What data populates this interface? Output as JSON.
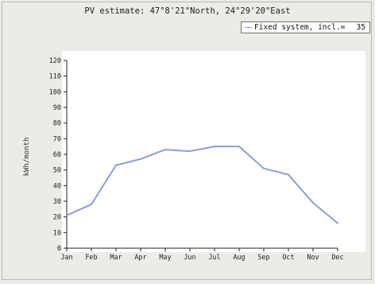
{
  "title": "PV estimate:  47°8'21\"North, 24°29'20\"East",
  "legend": {
    "label": "Fixed system, incl.=",
    "value": "35"
  },
  "colors": {
    "line": "#8a9ed6",
    "axis": "#222222",
    "background": "#eceae6",
    "plot_background": "#ffffff"
  },
  "chart_data": {
    "type": "line",
    "title": "PV estimate:  47°8'21\"North, 24°29'20\"East",
    "xlabel": "",
    "ylabel": "kWh/month",
    "categories": [
      "Jan",
      "Feb",
      "Mar",
      "Apr",
      "May",
      "Jun",
      "Jul",
      "Aug",
      "Sep",
      "Oct",
      "Nov",
      "Dec"
    ],
    "series": [
      {
        "name": "Fixed system, incl.= 35",
        "values": [
          21,
          28,
          53,
          57,
          63,
          62,
          65,
          65,
          51,
          47,
          29,
          16
        ]
      }
    ],
    "ylim": [
      0,
      120
    ],
    "yticks": [
      0,
      10,
      20,
      30,
      40,
      50,
      60,
      70,
      80,
      90,
      100,
      110,
      120
    ],
    "grid": false,
    "legend_position": "top-right"
  }
}
